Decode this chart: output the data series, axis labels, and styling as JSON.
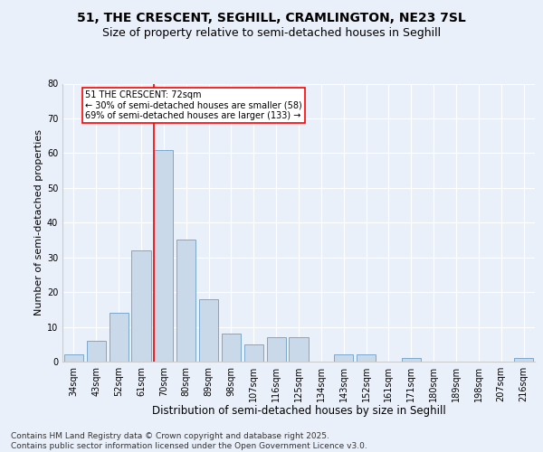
{
  "title1": "51, THE CRESCENT, SEGHILL, CRAMLINGTON, NE23 7SL",
  "title2": "Size of property relative to semi-detached houses in Seghill",
  "xlabel": "Distribution of semi-detached houses by size in Seghill",
  "ylabel": "Number of semi-detached properties",
  "categories": [
    "34sqm",
    "43sqm",
    "52sqm",
    "61sqm",
    "70sqm",
    "80sqm",
    "89sqm",
    "98sqm",
    "107sqm",
    "116sqm",
    "125sqm",
    "134sqm",
    "143sqm",
    "152sqm",
    "161sqm",
    "171sqm",
    "180sqm",
    "189sqm",
    "198sqm",
    "207sqm",
    "216sqm"
  ],
  "values": [
    2,
    6,
    14,
    32,
    61,
    35,
    18,
    8,
    5,
    7,
    7,
    0,
    2,
    2,
    0,
    1,
    0,
    0,
    0,
    0,
    1
  ],
  "bar_color": "#c9d9ea",
  "bar_edge_color": "#7aa8cc",
  "ylim": [
    0,
    80
  ],
  "yticks": [
    0,
    10,
    20,
    30,
    40,
    50,
    60,
    70,
    80
  ],
  "property_bin_index": 4,
  "annotation_text": "51 THE CRESCENT: 72sqm\n← 30% of semi-detached houses are smaller (58)\n69% of semi-detached houses are larger (133) →",
  "annotation_box_color": "white",
  "annotation_box_edge_color": "red",
  "vline_color": "red",
  "background_color": "#eaf0f9",
  "footer_text": "Contains HM Land Registry data © Crown copyright and database right 2025.\nContains public sector information licensed under the Open Government Licence v3.0.",
  "title_fontsize": 10,
  "subtitle_fontsize": 9,
  "tick_fontsize": 7,
  "xlabel_fontsize": 8.5,
  "ylabel_fontsize": 8,
  "footer_fontsize": 6.5
}
